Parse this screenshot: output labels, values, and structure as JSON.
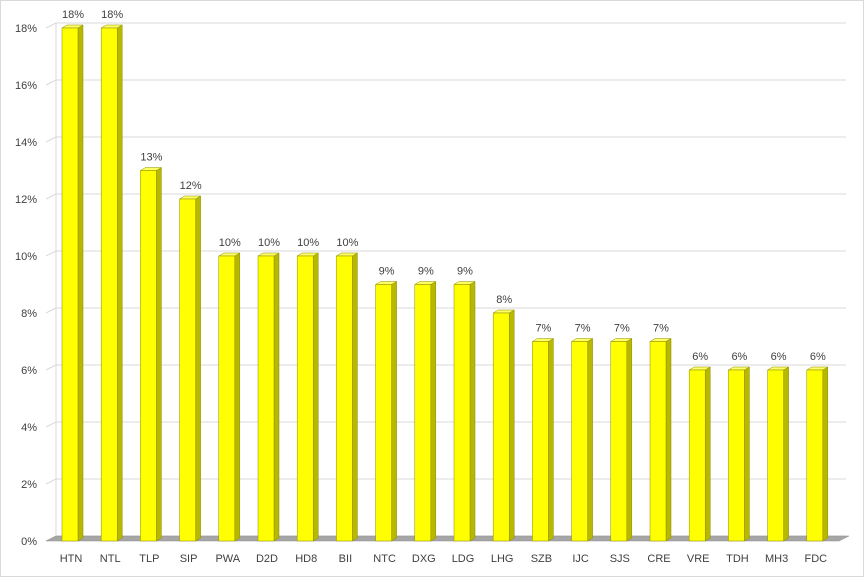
{
  "chart_data": {
    "type": "bar",
    "title": "",
    "xlabel": "",
    "ylabel": "",
    "categories": [
      "HTN",
      "NTL",
      "TLP",
      "SIP",
      "PWA",
      "D2D",
      "HD8",
      "BII",
      "NTC",
      "DXG",
      "LDG",
      "LHG",
      "SZB",
      "IJC",
      "SJS",
      "CRE",
      "VRE",
      "TDH",
      "MH3",
      "FDC"
    ],
    "values": [
      18,
      18,
      13,
      12,
      10,
      10,
      10,
      10,
      9,
      9,
      9,
      8,
      7,
      7,
      7,
      7,
      6,
      6,
      6,
      6
    ],
    "data_labels": [
      "18%",
      "18%",
      "13%",
      "12%",
      "10%",
      "10%",
      "10%",
      "10%",
      "9%",
      "9%",
      "9%",
      "8%",
      "7%",
      "7%",
      "7%",
      "7%",
      "6%",
      "6%",
      "6%",
      "6%"
    ],
    "ylim": [
      0,
      18
    ],
    "y_ticks": [
      0,
      2,
      4,
      6,
      8,
      10,
      12,
      14,
      16,
      18
    ],
    "y_tick_labels": [
      "0%",
      "2%",
      "4%",
      "6%",
      "8%",
      "10%",
      "12%",
      "14%",
      "16%",
      "18%"
    ],
    "grid": true,
    "legend": "none",
    "style": "3d-column",
    "colors": {
      "bar_front": "#ffff00",
      "bar_side": "#b8b800",
      "bar_top": "#ffff66",
      "bar_stroke": "#8c8c00",
      "grid": "#d9d9d9",
      "floor": "#a6a6a6"
    }
  }
}
